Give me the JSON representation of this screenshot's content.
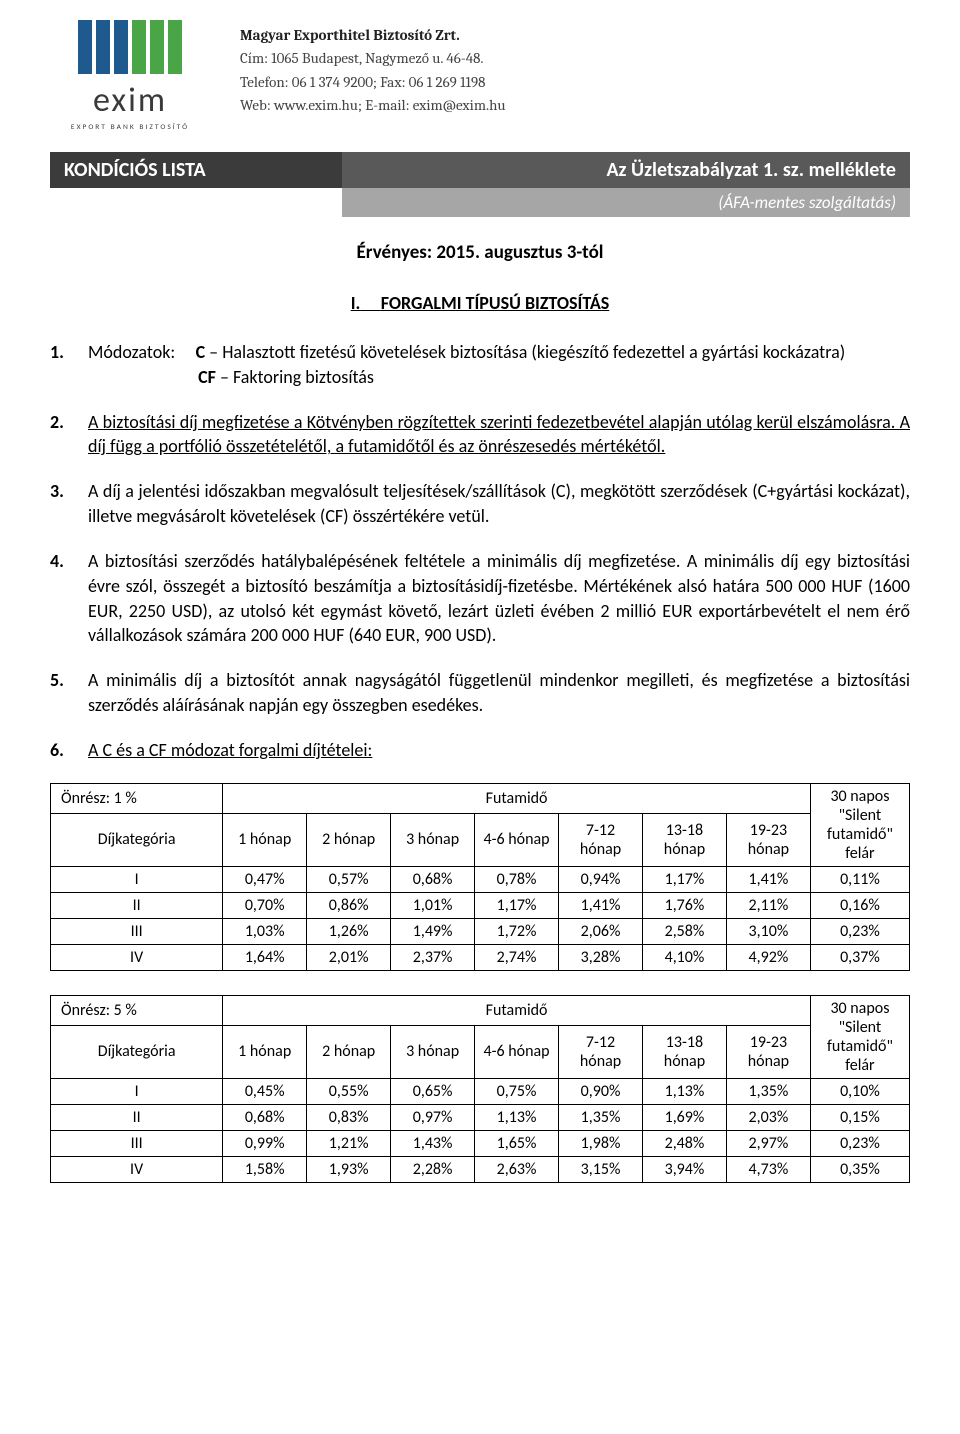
{
  "company": {
    "name": "Magyar Exporthitel Biztosító Zrt.",
    "address": "Cím: 1065 Budapest, Nagymező u. 46-48.",
    "phone": "Telefon: 06 1 374 9200; Fax: 06 1 269 1198",
    "web": "Web: www.exim.hu; E-mail: exim@exim.hu",
    "logo_text": "exim",
    "logo_sub": "EXPORT    BANK    BIZTOSÍTÓ",
    "logo_colors": {
      "blue": "#1e5a8e",
      "green": "#4aa546"
    }
  },
  "header": {
    "left": "KONDÍCIÓS LISTA",
    "right": "Az Üzletszabályzat 1. sz. melléklete",
    "sub": "(ÁFA-mentes szolgáltatás)"
  },
  "valid": "Érvényes: 2015. augusztus 3-tól",
  "section1": {
    "roman": "I.",
    "title": "FORGALMI TÍPUSÚ BIZTOSÍTÁS",
    "p1_num": "1.",
    "p1_label": "Módozatok:",
    "p1_line1_code": "C",
    "p1_line1_text": " – Halasztott fizetésű követelések biztosítása (kiegészítő fedezettel a gyártási kockázatra)",
    "p1_line2_code": "CF",
    "p1_line2_text": " – Faktoring biztosítás",
    "p2_num": "2.",
    "p2": "A biztosítási díj megfizetése a Kötvényben rögzítettek szerinti fedezetbevétel alapján utólag kerül elszámolásra. A díj függ a portfólió összetételétől, a futamidőtől és az önrészesedés mértékétől.",
    "p3_num": "3.",
    "p3": "A díj a jelentési időszakban megvalósult teljesítések/szállítások (C), megkötött szerződések (C+gyártási kockázat), illetve megvásárolt követelések (CF) összértékére vetül.",
    "p4_num": "4.",
    "p4": "A biztosítási szerződés hatálybalépésének feltétele a minimális díj megfizetése. A minimális díj egy biztosítási évre szól, összegét a biztosító beszámítja a biztosításidíj-fizetésbe. Mértékének alsó határa 500 000 HUF (1600 EUR, 2250 USD), az utolsó két egymást követő, lezárt üzleti évében 2 millió EUR exportárbevételt el nem érő vállalkozások számára 200 000 HUF (640 EUR, 900 USD).",
    "p5_num": "5.",
    "p5": "A minimális díj a biztosítót annak nagyságától függetlenül mindenkor megilleti, és megfizetése a biztosítási szerződés aláírásának napján egy összegben esedékes.",
    "p6_num": "6.",
    "p6": "A C és a CF módozat forgalmi díjtételei:"
  },
  "table_common": {
    "futamido": "Futamidő",
    "dijkat": "Díjkategória",
    "extra_header": "30 napos \"Silent futamidő\" felár",
    "cols": [
      "1 hónap",
      "2 hónap",
      "3 hónap",
      "4-6 hónap",
      "7-12 hónap",
      "13-18 hónap",
      "19-23 hónap"
    ]
  },
  "table1": {
    "onresz": "Önrész: 1 %",
    "rows": [
      {
        "cat": "I",
        "v": [
          "0,47%",
          "0,57%",
          "0,68%",
          "0,78%",
          "0,94%",
          "1,17%",
          "1,41%"
        ],
        "extra": "0,11%"
      },
      {
        "cat": "II",
        "v": [
          "0,70%",
          "0,86%",
          "1,01%",
          "1,17%",
          "1,41%",
          "1,76%",
          "2,11%"
        ],
        "extra": "0,16%"
      },
      {
        "cat": "III",
        "v": [
          "1,03%",
          "1,26%",
          "1,49%",
          "1,72%",
          "2,06%",
          "2,58%",
          "3,10%"
        ],
        "extra": "0,23%"
      },
      {
        "cat": "IV",
        "v": [
          "1,64%",
          "2,01%",
          "2,37%",
          "2,74%",
          "3,28%",
          "4,10%",
          "4,92%"
        ],
        "extra": "0,37%"
      }
    ]
  },
  "table2": {
    "onresz": "Önrész: 5 %",
    "rows": [
      {
        "cat": "I",
        "v": [
          "0,45%",
          "0,55%",
          "0,65%",
          "0,75%",
          "0,90%",
          "1,13%",
          "1,35%"
        ],
        "extra": "0,10%"
      },
      {
        "cat": "II",
        "v": [
          "0,68%",
          "0,83%",
          "0,97%",
          "1,13%",
          "1,35%",
          "1,69%",
          "2,03%"
        ],
        "extra": "0,15%"
      },
      {
        "cat": "III",
        "v": [
          "0,99%",
          "1,21%",
          "1,43%",
          "1,65%",
          "1,98%",
          "2,48%",
          "2,97%"
        ],
        "extra": "0,23%"
      },
      {
        "cat": "IV",
        "v": [
          "1,58%",
          "1,93%",
          "2,28%",
          "2,63%",
          "3,15%",
          "3,94%",
          "4,73%"
        ],
        "extra": "0,35%"
      }
    ]
  }
}
